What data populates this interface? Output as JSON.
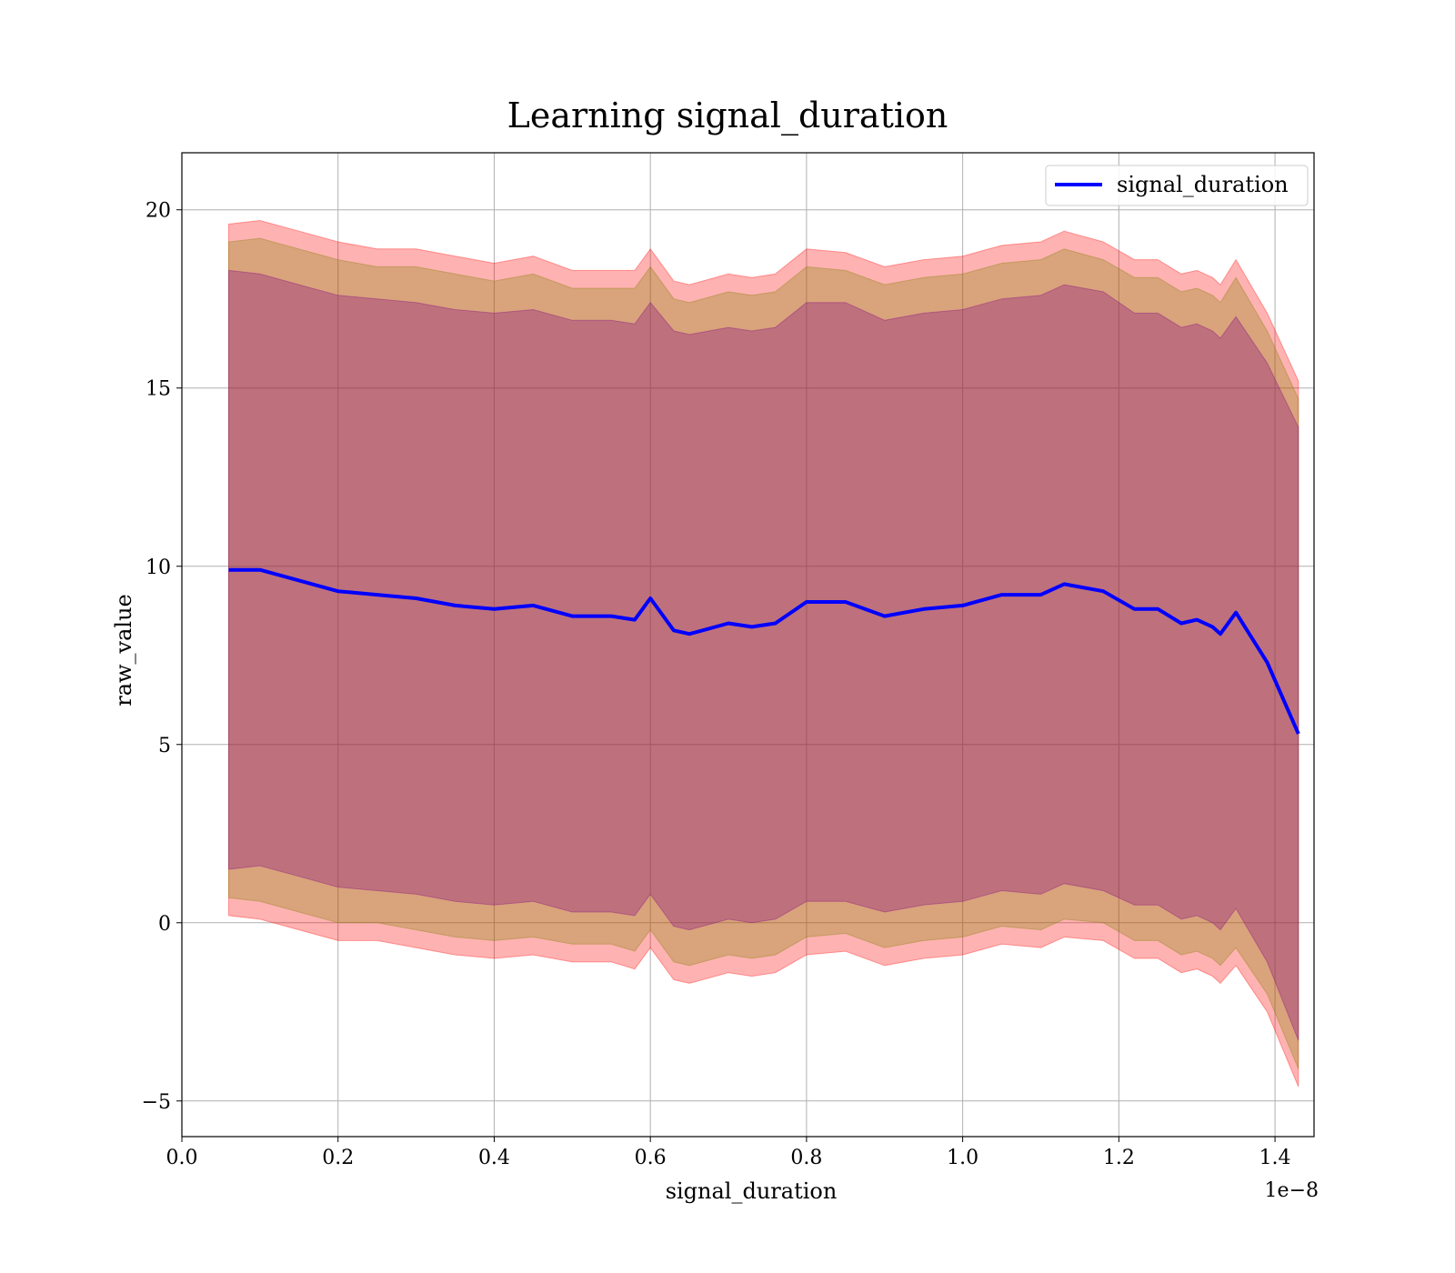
{
  "chart_data": {
    "type": "line",
    "title": "Learning signal_duration",
    "xlabel": "signal_duration",
    "ylabel": "raw_value",
    "x_offset_text": "1e−8",
    "xlim": [
      0.0,
      1.45e-08
    ],
    "ylim": [
      -6.0,
      21.6
    ],
    "x_ticks": [
      0.0,
      2e-09,
      4e-09,
      6e-09,
      8e-09,
      1e-08,
      1.2e-08,
      1.4e-08
    ],
    "x_tick_labels": [
      "0.0",
      "0.2",
      "0.4",
      "0.6",
      "0.8",
      "1.0",
      "1.2",
      "1.4"
    ],
    "y_ticks": [
      -5,
      0,
      5,
      10,
      15,
      20
    ],
    "y_tick_labels": [
      "−5",
      "0",
      "5",
      "10",
      "15",
      "20"
    ],
    "grid": true,
    "legend": {
      "position": "top-right",
      "entries": [
        "signal_duration"
      ]
    },
    "colors": {
      "line": "#0000ff",
      "band_outer": "#ff0000",
      "band_middle": "#808000",
      "band_inner": "#800080"
    },
    "x": [
      6e-10,
      1e-09,
      1.5e-09,
      2e-09,
      2.5e-09,
      3e-09,
      3.5e-09,
      4e-09,
      4.5e-09,
      5e-09,
      5.5e-09,
      5.8e-09,
      6e-09,
      6.3e-09,
      6.5e-09,
      7e-09,
      7.3e-09,
      7.6e-09,
      8e-09,
      8.5e-09,
      9e-09,
      9.5e-09,
      1e-08,
      1.05e-08,
      1.1e-08,
      1.13e-08,
      1.18e-08,
      1.22e-08,
      1.25e-08,
      1.28e-08,
      1.3e-08,
      1.32e-08,
      1.33e-08,
      1.35e-08,
      1.39e-08,
      1.43e-08
    ],
    "series": [
      {
        "name": "signal_duration",
        "values": [
          9.9,
          9.9,
          9.6,
          9.3,
          9.2,
          9.1,
          8.9,
          8.8,
          8.9,
          8.6,
          8.6,
          8.5,
          9.1,
          8.2,
          8.1,
          8.4,
          8.3,
          8.4,
          9.0,
          9.0,
          8.6,
          8.8,
          8.9,
          9.2,
          9.2,
          9.5,
          9.3,
          8.8,
          8.8,
          8.4,
          8.5,
          8.3,
          8.1,
          8.7,
          7.3,
          5.3
        ]
      }
    ],
    "bands": [
      {
        "sigma": 2.7,
        "fill": "band_outer",
        "upper": [
          19.6,
          19.7,
          19.4,
          19.1,
          18.9,
          18.9,
          18.7,
          18.5,
          18.7,
          18.3,
          18.3,
          18.3,
          18.9,
          18.0,
          17.9,
          18.2,
          18.1,
          18.2,
          18.9,
          18.8,
          18.4,
          18.6,
          18.7,
          19.0,
          19.1,
          19.4,
          19.1,
          18.6,
          18.6,
          18.2,
          18.3,
          18.1,
          17.9,
          18.6,
          17.1,
          15.2
        ],
        "lower": [
          0.2,
          0.1,
          -0.2,
          -0.5,
          -0.5,
          -0.7,
          -0.9,
          -1.0,
          -0.9,
          -1.1,
          -1.1,
          -1.3,
          -0.7,
          -1.6,
          -1.7,
          -1.4,
          -1.5,
          -1.4,
          -0.9,
          -0.8,
          -1.2,
          -1.0,
          -0.9,
          -0.6,
          -0.7,
          -0.4,
          -0.5,
          -1.0,
          -1.0,
          -1.4,
          -1.3,
          -1.5,
          -1.7,
          -1.2,
          -2.5,
          -4.6
        ]
      },
      {
        "sigma": 2.0,
        "fill": "band_middle",
        "upper": [
          19.1,
          19.2,
          18.9,
          18.6,
          18.4,
          18.4,
          18.2,
          18.0,
          18.2,
          17.8,
          17.8,
          17.8,
          18.4,
          17.5,
          17.4,
          17.7,
          17.6,
          17.7,
          18.4,
          18.3,
          17.9,
          18.1,
          18.2,
          18.5,
          18.6,
          18.9,
          18.6,
          18.1,
          18.1,
          17.7,
          17.8,
          17.6,
          17.4,
          18.1,
          16.6,
          14.7
        ],
        "lower": [
          0.7,
          0.6,
          0.3,
          0.0,
          0.0,
          -0.2,
          -0.4,
          -0.5,
          -0.4,
          -0.6,
          -0.6,
          -0.8,
          -0.2,
          -1.1,
          -1.2,
          -0.9,
          -1.0,
          -0.9,
          -0.4,
          -0.3,
          -0.7,
          -0.5,
          -0.4,
          -0.1,
          -0.2,
          0.1,
          0.0,
          -0.5,
          -0.5,
          -0.9,
          -0.8,
          -1.0,
          -1.2,
          -0.7,
          -2.0,
          -4.1
        ]
      },
      {
        "sigma": 1.0,
        "fill": "band_inner",
        "upper": [
          18.3,
          18.2,
          17.9,
          17.6,
          17.5,
          17.4,
          17.2,
          17.1,
          17.2,
          16.9,
          16.9,
          16.8,
          17.4,
          16.6,
          16.5,
          16.7,
          16.6,
          16.7,
          17.4,
          17.4,
          16.9,
          17.1,
          17.2,
          17.5,
          17.6,
          17.9,
          17.7,
          17.1,
          17.1,
          16.7,
          16.8,
          16.6,
          16.4,
          17.0,
          15.7,
          13.9
        ],
        "lower": [
          1.5,
          1.6,
          1.3,
          1.0,
          0.9,
          0.8,
          0.6,
          0.5,
          0.6,
          0.3,
          0.3,
          0.2,
          0.8,
          -0.1,
          -0.2,
          0.1,
          0.0,
          0.1,
          0.6,
          0.6,
          0.3,
          0.5,
          0.6,
          0.9,
          0.8,
          1.1,
          0.9,
          0.5,
          0.5,
          0.1,
          0.2,
          0.0,
          -0.2,
          0.4,
          -1.1,
          -3.3
        ]
      }
    ]
  }
}
